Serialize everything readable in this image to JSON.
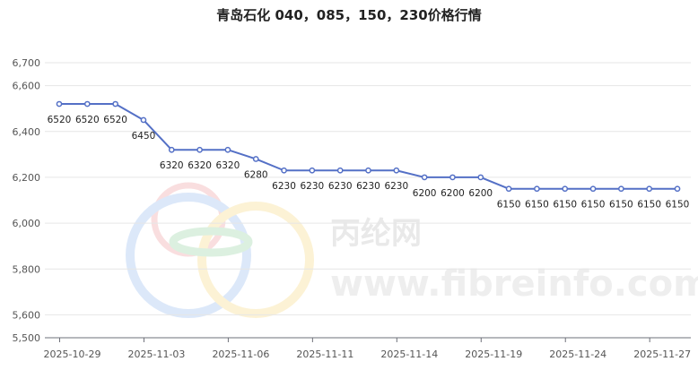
{
  "chart_data": {
    "type": "line",
    "title": "青岛石化 040，085，150，230价格行情",
    "xlabel": "",
    "ylabel": "",
    "ylim": [
      5500,
      6700
    ],
    "yticks": [
      "5,500",
      "5,600",
      "5,800",
      "6,000",
      "6,200",
      "6,400",
      "6,600",
      "6,700"
    ],
    "ytick_values": [
      5500,
      5600,
      5800,
      6000,
      6200,
      6400,
      6600,
      6700
    ],
    "xtick_labels": [
      "2025-10-29",
      "2025-11-03",
      "2025-11-06",
      "2025-11-11",
      "2025-11-14",
      "2025-11-19",
      "2025-11-24",
      "2025-11-27"
    ],
    "grid": true,
    "line_color": "#5470c6",
    "series": [
      {
        "values": [
          6520,
          6520,
          6520,
          6450,
          6320,
          6320,
          6320,
          6280,
          6230,
          6230,
          6230,
          6230,
          6230,
          6200,
          6200,
          6200,
          6150,
          6150,
          6150,
          6150,
          6150,
          6150,
          6150
        ]
      }
    ]
  },
  "watermark": {
    "cn": "丙纶网",
    "url": "www.fibreinfo.com"
  }
}
